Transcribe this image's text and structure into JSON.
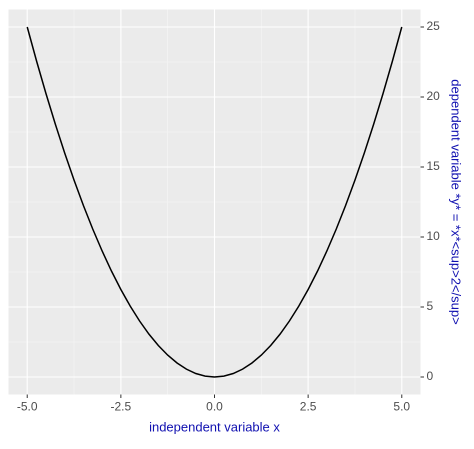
{
  "chart_data": {
    "type": "line",
    "xlabel": "independent variable x",
    "ylabel": "dependent variable *y* = *x*<sup>2</sup>",
    "x": [
      -5,
      -4.75,
      -4.5,
      -4.25,
      -4,
      -3.75,
      -3.5,
      -3.25,
      -3,
      -2.75,
      -2.5,
      -2.25,
      -2,
      -1.75,
      -1.5,
      -1.25,
      -1,
      -0.75,
      -0.5,
      -0.25,
      0,
      0.25,
      0.5,
      0.75,
      1,
      1.25,
      1.5,
      1.75,
      2,
      2.25,
      2.5,
      2.75,
      3,
      3.25,
      3.5,
      3.75,
      4,
      4.25,
      4.5,
      4.75,
      5
    ],
    "series": [
      {
        "color": "#000000",
        "values": [
          25,
          22.5625,
          20.25,
          18.0625,
          16,
          14.0625,
          12.25,
          10.5625,
          9,
          7.5625,
          6.25,
          5.0625,
          4,
          3.0625,
          2.25,
          1.5625,
          1,
          0.5625,
          0.25,
          0.0625,
          0,
          0.0625,
          0.25,
          0.5625,
          1,
          1.5625,
          2.25,
          3.0625,
          4,
          5.0625,
          6.25,
          7.5625,
          9,
          10.5625,
          12.25,
          14.0625,
          16,
          18.0625,
          20.25,
          22.5625,
          25
        ]
      }
    ],
    "xlim": [
      -5.5,
      5.5
    ],
    "xticks": [
      {
        "value": -5,
        "label": "-5.0"
      },
      {
        "value": -2.5,
        "label": "-2.5"
      },
      {
        "value": 0,
        "label": "0.0"
      },
      {
        "value": 2.5,
        "label": "2.5"
      },
      {
        "value": 5,
        "label": "5.0"
      }
    ],
    "ylim": [
      -1.25,
      26.25
    ],
    "yticks": [
      0,
      5,
      10,
      15,
      20,
      25
    ],
    "y_axis_side": "right",
    "grid": true,
    "label_color": "#1010b0"
  }
}
